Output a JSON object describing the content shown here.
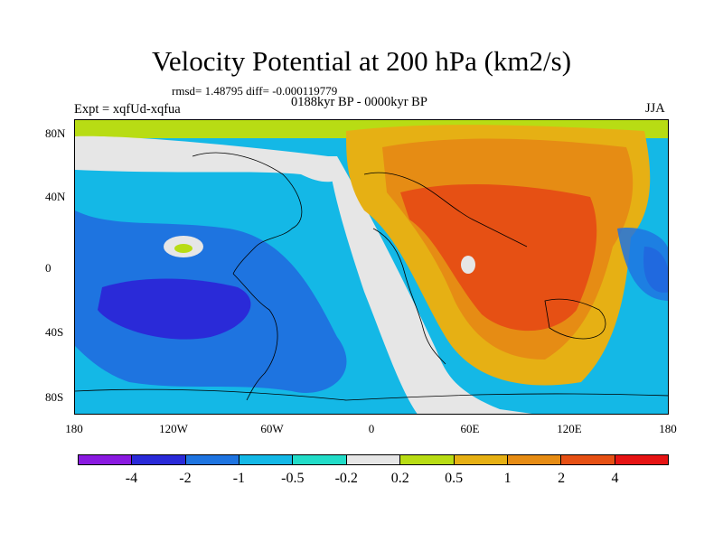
{
  "title": "Velocity Potential at 200 hPa (km2/s)",
  "stats_text": "rmsd= 1.48795 diff= -0.000119779",
  "experiment_text": "Expt = xqfUd-xqfua",
  "period_text": "0188kyr BP - 0000kyr BP",
  "season_text": "JJA",
  "map": {
    "y_ticks": [
      "80N",
      "40N",
      "0",
      "40S",
      "80S"
    ],
    "x_ticks": [
      "180",
      "120W",
      "60W",
      "0",
      "60E",
      "120E",
      "180"
    ]
  },
  "colorbar": {
    "colors": [
      "#8a1ae0",
      "#2a2ad8",
      "#1e74e0",
      "#14b8e6",
      "#22dcc8",
      "#e6e6e6",
      "#b8dc14",
      "#e6b014",
      "#e68c14",
      "#e65014",
      "#e61414"
    ],
    "labels": [
      "-4",
      "-2",
      "-1",
      "-0.5",
      "-0.2",
      "0.2",
      "0.5",
      "1",
      "2",
      "4"
    ]
  }
}
